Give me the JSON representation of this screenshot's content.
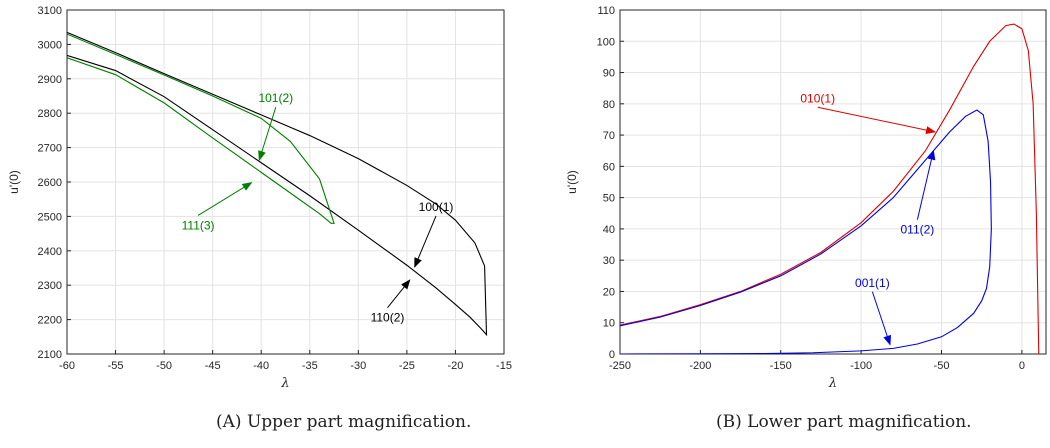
{
  "chart_data": [
    {
      "type": "line",
      "panel": "A",
      "caption": "(A) Upper part magnification.",
      "xlabel": "λ",
      "ylabel": "u'(0)",
      "xlim": [
        -60,
        -15
      ],
      "ylim": [
        2100,
        3100
      ],
      "xticks": [
        -60,
        -55,
        -50,
        -45,
        -40,
        -35,
        -30,
        -25,
        -20,
        -15
      ],
      "yticks": [
        2100,
        2200,
        2300,
        2400,
        2500,
        2600,
        2700,
        2800,
        2900,
        3000,
        3100
      ],
      "grid": true,
      "series": [
        {
          "color": "#000000",
          "x": [
            -60,
            -55,
            -50,
            -45,
            -40,
            -35,
            -30,
            -25,
            -22,
            -20,
            -18,
            -17,
            -16.8,
            -17.3,
            -18.5,
            -20,
            -22,
            -25,
            -30,
            -35,
            -40,
            -45,
            -50,
            -55,
            -60
          ],
          "y": [
            3035,
            2976,
            2915,
            2855,
            2795,
            2735,
            2668,
            2590,
            2536,
            2489,
            2423,
            2356,
            2156,
            2172,
            2207,
            2244,
            2292,
            2358,
            2460,
            2560,
            2656,
            2752,
            2848,
            2924,
            2968
          ]
        },
        {
          "color": "#008000",
          "x": [
            -60,
            -55,
            -50,
            -45,
            -40,
            -37,
            -34,
            -32.5,
            -32.8,
            -34,
            -37,
            -40,
            -45,
            -50,
            -55,
            -60
          ],
          "y": [
            3030,
            2971,
            2911,
            2850,
            2785,
            2718,
            2609,
            2480,
            2480,
            2508,
            2568,
            2628,
            2728,
            2830,
            2912,
            2961
          ]
        }
      ],
      "annotations": [
        {
          "text": "101(2)",
          "color": "#008000",
          "x": -38.5,
          "y": 2832,
          "ax": -40.2,
          "ay": 2664
        },
        {
          "text": "111(3)",
          "color": "#008000",
          "x": -46.5,
          "y": 2462,
          "ax": -41,
          "ay": 2598
        },
        {
          "text": "100(1)",
          "color": "#000000",
          "x": -22,
          "y": 2516,
          "ax": -24.2,
          "ay": 2353
        },
        {
          "text": "110(2)",
          "color": "#000000",
          "x": -27,
          "y": 2194,
          "ax": -24.7,
          "ay": 2315
        }
      ]
    },
    {
      "type": "line",
      "panel": "B",
      "caption": "(B) Lower part magnification.",
      "xlabel": "λ",
      "ylabel": "u'(0)",
      "xlim": [
        -250,
        15
      ],
      "ylim": [
        0,
        110
      ],
      "xticks": [
        -250,
        -200,
        -150,
        -100,
        -50,
        0
      ],
      "yticks": [
        0,
        10,
        20,
        30,
        40,
        50,
        60,
        70,
        80,
        90,
        100,
        110
      ],
      "grid": true,
      "series": [
        {
          "color": "#e00000",
          "x": [
            -250,
            -225,
            -200,
            -175,
            -150,
            -125,
            -100,
            -80,
            -60,
            -45,
            -30,
            -20,
            -10,
            -5,
            0,
            4,
            7,
            9,
            10.5
          ],
          "y": [
            9.2,
            12,
            15.8,
            20,
            25.5,
            32.5,
            42,
            52,
            65,
            78,
            92,
            100,
            105,
            105.5,
            104,
            97,
            80,
            45,
            0
          ]
        },
        {
          "color": "#0000e6",
          "x": [
            -250,
            -225,
            -200,
            -175,
            -150,
            -125,
            -100,
            -80,
            -60,
            -45,
            -35,
            -28,
            -24,
            -21,
            -19.5,
            -19,
            -20,
            -22,
            -25,
            -30,
            -40,
            -50,
            -65,
            -80,
            -100,
            -130,
            -160,
            -200,
            -250
          ],
          "y": [
            9,
            11.8,
            15.5,
            19.8,
            25,
            32,
            41,
            50,
            62,
            71,
            76,
            78,
            76.5,
            68,
            55,
            40,
            28,
            21,
            17,
            13,
            8.5,
            5.5,
            3.2,
            1.8,
            1,
            0.4,
            0.15,
            0.05,
            0
          ]
        }
      ],
      "annotations": [
        {
          "text": "010(1)",
          "color": "#e00000",
          "x": -127,
          "y": 80.5,
          "ax": -54,
          "ay": 71
        },
        {
          "text": "011(2)",
          "color": "#0000e6",
          "x": -65,
          "y": 38.5,
          "ax": -55,
          "ay": 65
        },
        {
          "text": "001(1)",
          "color": "#0000e6",
          "x": -93,
          "y": 21.5,
          "ax": -82,
          "ay": 3
        }
      ]
    }
  ]
}
